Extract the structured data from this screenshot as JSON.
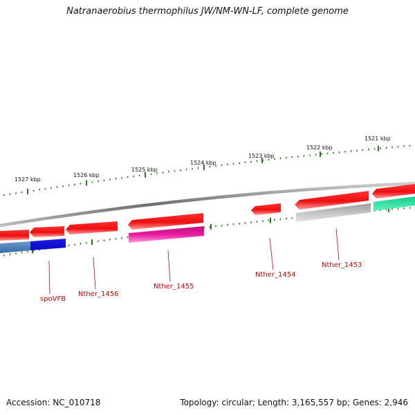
{
  "title": "Natranaerobius thermophilus JW/NM-WN-LF, complete genome",
  "colors": {
    "background": "#ffffff",
    "backbone": "#7a7a7a",
    "scale_tick": "#2a7a1e",
    "label_text": "#c80000",
    "gene_red": "#ee1111",
    "gene_magenta": "#e0189a",
    "gene_blue": "#1818e6",
    "gene_steelblue": "#4a7ab4",
    "gene_gray": "#b8b8b8",
    "gene_teal": "#1ee09a"
  },
  "scale_ticks": [
    {
      "label": "1527 kbp"
    },
    {
      "label": "1526 kbp"
    },
    {
      "label": "1525 kbp"
    },
    {
      "label": "1524 kbp"
    },
    {
      "label": "1523 kbp"
    },
    {
      "label": "1522 kbp"
    },
    {
      "label": "1521 kbp"
    }
  ],
  "genes": [
    {
      "name": "spoVFB",
      "label_visible": true
    },
    {
      "name": "Nther_1456",
      "label_visible": true
    },
    {
      "name": "Nther_1455",
      "label_visible": true
    },
    {
      "name": "Nther_1454",
      "label_visible": true
    },
    {
      "name": "Nther_1453",
      "label_visible": true
    }
  ],
  "footer": {
    "accession": "Accession: NC_010718",
    "topology": "Topology: circular; Length: 3,165,557 bp; Genes: 2,946"
  }
}
